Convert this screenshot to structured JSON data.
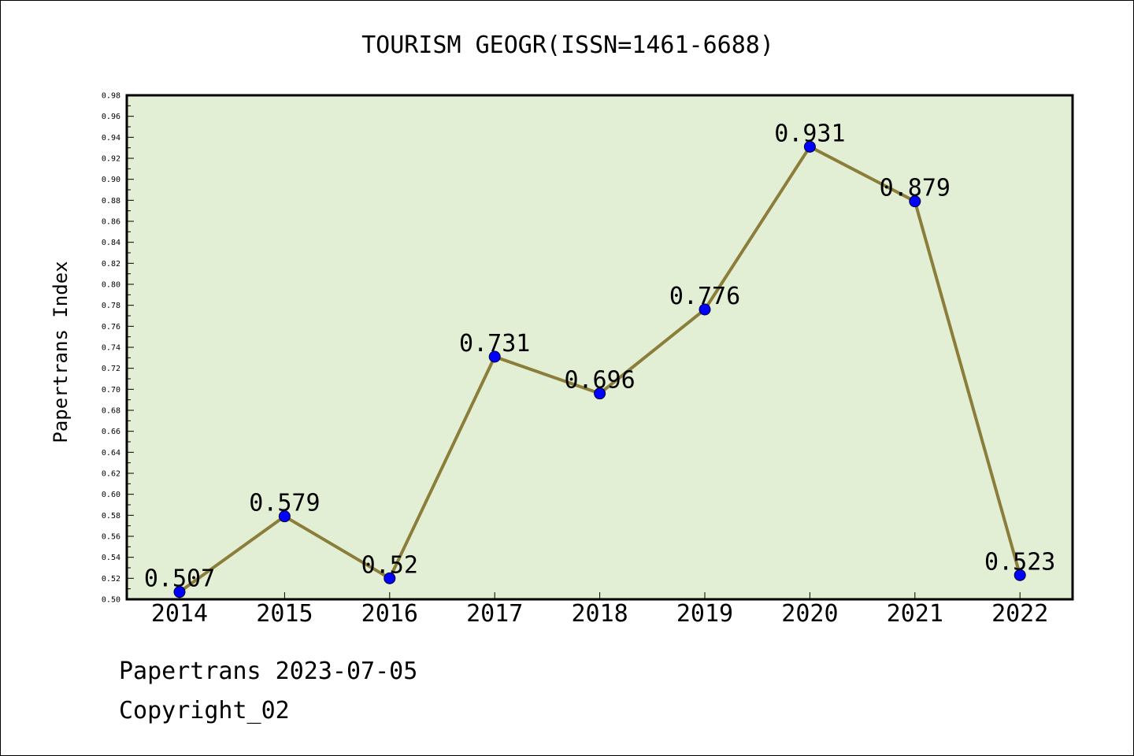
{
  "chart_data": {
    "type": "line",
    "title": "TOURISM GEOGR(ISSN=1461-6688)",
    "xlabel": "",
    "ylabel": "Papertrans Index",
    "categories": [
      "2014",
      "2015",
      "2016",
      "2017",
      "2018",
      "2019",
      "2020",
      "2021",
      "2022"
    ],
    "series": [
      {
        "values": [
          0.507,
          0.579,
          0.52,
          0.731,
          0.696,
          0.776,
          0.931,
          0.879,
          0.523
        ],
        "data_labels": [
          "0.507",
          "0.579",
          "0.52",
          "0.731",
          "0.696",
          "0.776",
          "0.931",
          "0.879",
          "0.523"
        ]
      }
    ],
    "ylim": [
      0.5,
      0.98
    ],
    "y_ticks": [
      "0.50",
      "0.52",
      "0.54",
      "0.56",
      "0.58",
      "0.60",
      "0.62",
      "0.64",
      "0.66",
      "0.68",
      "0.70",
      "0.72",
      "0.74",
      "0.76",
      "0.78",
      "0.80",
      "0.82",
      "0.84",
      "0.86",
      "0.88",
      "0.90",
      "0.92",
      "0.94",
      "0.96",
      "0.98"
    ],
    "grid": false,
    "legend": "none",
    "colors": {
      "plot_background": "#e2efd5",
      "line": "#8b7d3a",
      "marker": "#0000ff",
      "axis": "#000000"
    }
  },
  "footer": {
    "source": "Papertrans 2023-07-05",
    "copyright": "Copyright_02"
  }
}
